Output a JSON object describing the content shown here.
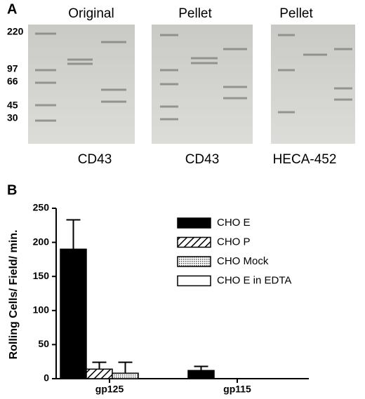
{
  "panel_a": {
    "label": "A",
    "lanes_top": [
      "Original",
      "Pellet",
      "Pellet"
    ],
    "lanes_bottom": [
      "CD43",
      "CD43",
      "HECA-452"
    ],
    "markers": [
      "220",
      "97",
      "66",
      "45",
      "30"
    ]
  },
  "chart_data": {
    "type": "bar",
    "panel_label": "B",
    "y_label": "Rolling Cells/ Field/ min.",
    "categories": [
      "gp125",
      "gp115"
    ],
    "series": [
      {
        "name": "CHO E",
        "pattern": "solid",
        "values": [
          190,
          12
        ],
        "errors": [
          43,
          6
        ]
      },
      {
        "name": "CHO P",
        "pattern": "hatch",
        "values": [
          14,
          0
        ],
        "errors": [
          10,
          0
        ]
      },
      {
        "name": "CHO Mock",
        "pattern": "dots",
        "values": [
          8,
          0
        ],
        "errors": [
          16,
          0
        ]
      },
      {
        "name": "CHO E in EDTA",
        "pattern": "white",
        "values": [
          0,
          0
        ],
        "errors": [
          0,
          0
        ]
      }
    ],
    "ylim": [
      0,
      250
    ],
    "yticks": [
      0,
      50,
      100,
      150,
      200,
      250
    ]
  }
}
